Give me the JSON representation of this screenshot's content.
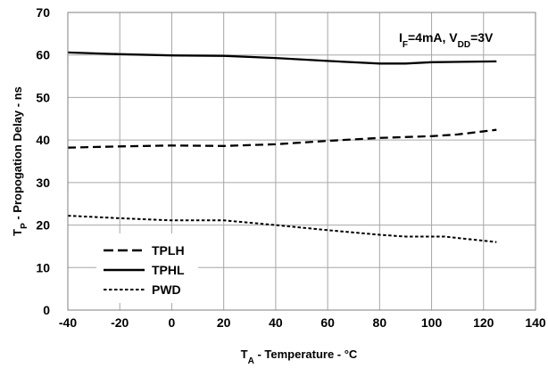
{
  "chart_data": {
    "type": "line",
    "xlabel": {
      "main": "T",
      "sub": "A",
      "rest": " - Temperature - °C"
    },
    "ylabel": {
      "main": "T",
      "sub": "P",
      "rest": " - Propogation Delay - ns"
    },
    "annotation": {
      "parts": [
        {
          "text": "I",
          "sub": false
        },
        {
          "text": "F",
          "sub": true
        },
        {
          "text": "=4mA, V",
          "sub": false
        },
        {
          "text": "DD",
          "sub": true
        },
        {
          "text": "=3V",
          "sub": false
        }
      ]
    },
    "xlim": [
      -40,
      140
    ],
    "ylim": [
      0,
      70
    ],
    "xticks": [
      -40,
      -20,
      0,
      20,
      40,
      60,
      80,
      100,
      120,
      140
    ],
    "yticks": [
      0,
      10,
      20,
      30,
      40,
      50,
      60,
      70
    ],
    "xtick_labels": [
      "-40",
      "-20",
      "0",
      "20",
      "40",
      "60",
      "80",
      "100",
      "120",
      "140"
    ],
    "ytick_labels": [
      "0",
      "10",
      "20",
      "30",
      "40",
      "50",
      "60",
      "70"
    ],
    "grid": true,
    "legend_position": "bottom-left",
    "series": [
      {
        "name": "TPLH",
        "style": "dashed",
        "x": [
          -40,
          -20,
          0,
          20,
          40,
          60,
          80,
          100,
          110,
          125
        ],
        "y": [
          38.2,
          38.5,
          38.7,
          38.6,
          39.0,
          39.8,
          40.5,
          40.9,
          41.3,
          42.4
        ]
      },
      {
        "name": "TPHL",
        "style": "solid",
        "x": [
          -40,
          -20,
          0,
          20,
          40,
          60,
          80,
          90,
          100,
          125
        ],
        "y": [
          60.6,
          60.2,
          59.9,
          59.8,
          59.3,
          58.6,
          58.0,
          58.0,
          58.3,
          58.5
        ]
      },
      {
        "name": "PWD",
        "style": "dotted",
        "x": [
          -40,
          -20,
          0,
          20,
          40,
          60,
          80,
          90,
          105,
          125
        ],
        "y": [
          22.2,
          21.6,
          21.1,
          21.1,
          20.0,
          18.8,
          17.7,
          17.3,
          17.3,
          16.0
        ]
      }
    ]
  }
}
